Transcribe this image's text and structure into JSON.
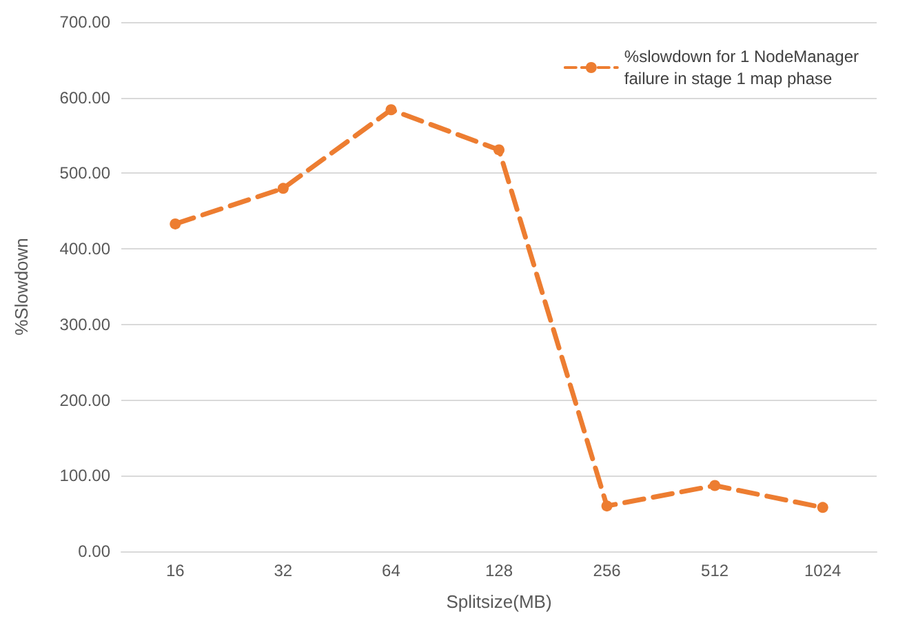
{
  "chart_data": {
    "type": "line",
    "xlabel": "Splitsize(MB)",
    "ylabel": "%Slowdown",
    "categories": [
      "16",
      "32",
      "64",
      "128",
      "256",
      "512",
      "1024"
    ],
    "series": [
      {
        "name": "%slowdown for 1 NodeManager\nfailure in stage 1 map phase",
        "color": "#ed7d31",
        "values": [
          433,
          480,
          584,
          531,
          60,
          87,
          58
        ]
      }
    ],
    "ylim": [
      0,
      700
    ],
    "yticks": [
      {
        "value": 0,
        "label": "0.00"
      },
      {
        "value": 100,
        "label": "100.00"
      },
      {
        "value": 200,
        "label": "200.00"
      },
      {
        "value": 300,
        "label": "300.00"
      },
      {
        "value": 400,
        "label": "400.00"
      },
      {
        "value": 500,
        "label": "500.00"
      },
      {
        "value": 600,
        "label": "600.00"
      },
      {
        "value": 700,
        "label": "700.00"
      }
    ],
    "grid": "y",
    "legend": "top right",
    "marker": "circle",
    "line_style": "dashed"
  }
}
